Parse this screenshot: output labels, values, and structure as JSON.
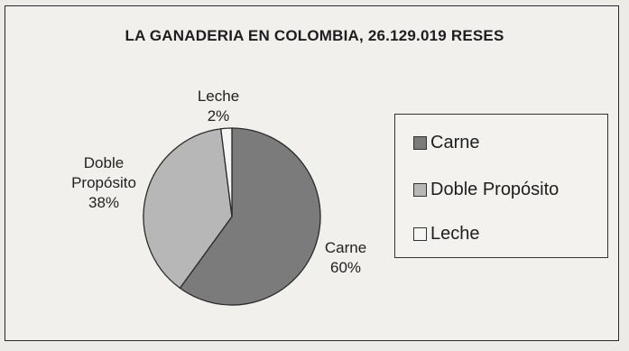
{
  "chart_data": {
    "type": "pie",
    "title": "LA GANADERIA EN COLOMBIA, 26.129.019 RESES",
    "slices": [
      {
        "name": "Carne",
        "value": 60,
        "label": "60%",
        "color": "#7b7b7b"
      },
      {
        "name": "Doble Propósito",
        "value": 38,
        "label": "38%",
        "color": "#b7b7b7"
      },
      {
        "name": "Leche",
        "value": 2,
        "label": "2%",
        "color": "#f6f6f4"
      }
    ],
    "legend": {
      "placement": "right",
      "entries": [
        "Carne",
        "Doble Propósito",
        "Leche"
      ]
    }
  }
}
